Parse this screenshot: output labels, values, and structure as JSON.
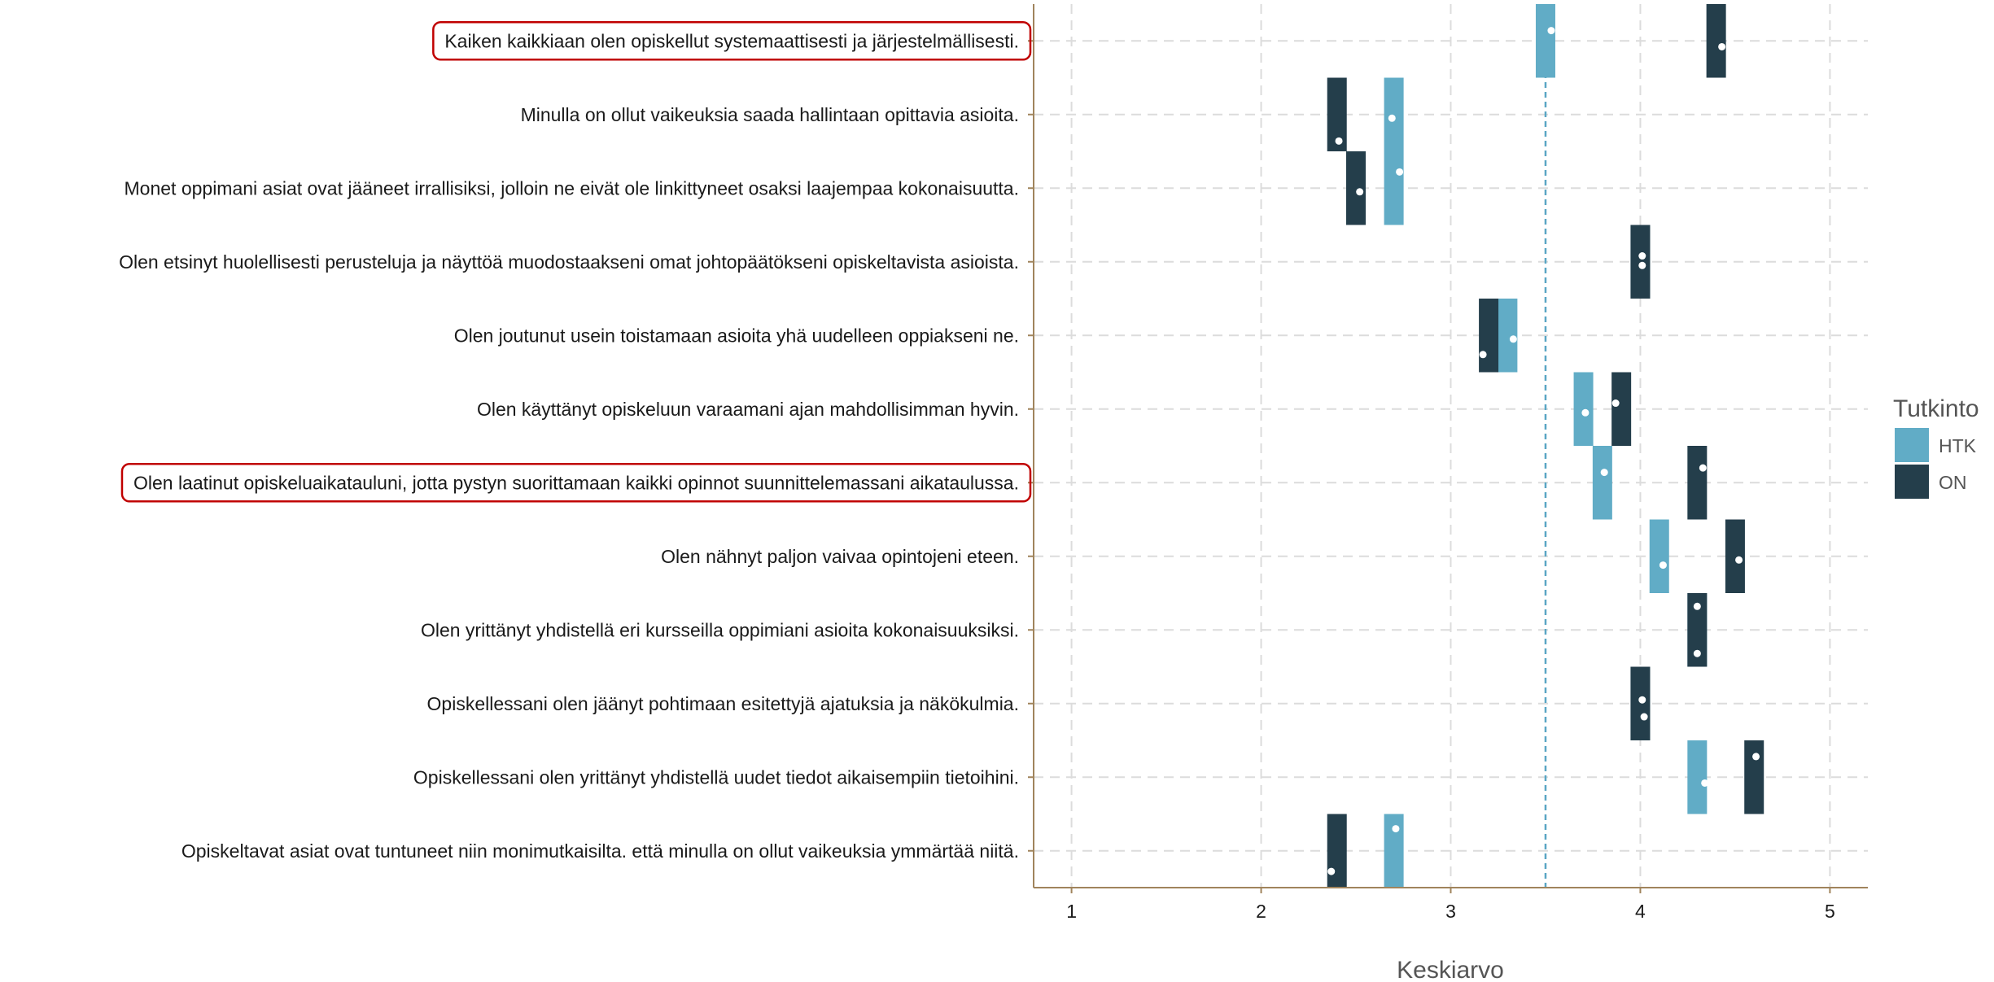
{
  "chart_data": {
    "type": "range-bar",
    "xlabel": "Keskiarvo",
    "xlim": [
      0.8,
      5.2
    ],
    "xticks": [
      1,
      2,
      3,
      4,
      5
    ],
    "reference_line": {
      "x": 3.5,
      "style": "dashed",
      "color": "#5aa6c4"
    },
    "grid": true,
    "legend": {
      "title": "Tutkinto",
      "position": "right",
      "entries": [
        {
          "name": "HTK",
          "color": "#61acc6"
        },
        {
          "name": "ON",
          "color": "#243e4b"
        }
      ]
    },
    "highlighted_categories": [
      0,
      6
    ],
    "highlight_color": "#c00000",
    "categories": [
      "Kaiken kaikkiaan olen opiskellut systemaattisesti ja järjestelmällisesti.",
      "Minulla on ollut vaikeuksia saada hallintaan opittavia asioita.",
      "Monet oppimani asiat ovat jääneet irrallisiksi, jolloin ne eivät ole linkittyneet osaksi laajempaa kokonaisuutta.",
      "Olen etsinyt huolellisesti perusteluja ja näyttöä muodostaakseni omat johtopäätökseni opiskeltavista asioista.",
      "Olen joutunut usein toistamaan asioita yhä uudelleen oppiakseni ne.",
      "Olen käyttänyt opiskeluun varaamani ajan mahdollisimman hyvin.",
      "Olen laatinut opiskeluaikatauluni, jotta pystyn suorittamaan kaikki opinnot suunnittelemassani aikataulussa.",
      "Olen nähnyt paljon vaivaa opintojeni eteen.",
      "Olen yrittänyt yhdistellä eri kursseilla oppimiani asioita kokonaisuuksiksi.",
      "Opiskellessani olen jäänyt pohtimaan esitettyjä ajatuksia ja näkökulmia.",
      "Opiskellessani olen yrittänyt yhdistellä uudet tiedot aikaisempiin tietoihini.",
      "Opiskeltavat asiat ovat tuntuneet niin monimutkaisilta. että minulla on ollut vaikeuksia ymmärtää niitä."
    ],
    "series": [
      {
        "name": "HTK",
        "color": "#61acc6",
        "values": [
          3.5,
          2.7,
          2.7,
          4.0,
          3.3,
          3.7,
          3.8,
          4.1,
          4.3,
          4.0,
          4.3,
          2.7
        ],
        "points": [
          [
            3.53,
            0.36
          ],
          [
            2.69,
            0.55
          ],
          [
            2.73,
            0.28
          ],
          [
            4.01,
            0.55
          ],
          [
            3.33,
            0.55
          ],
          [
            3.71,
            0.55
          ],
          [
            3.81,
            0.36
          ],
          [
            4.12,
            0.62
          ],
          [
            4.3,
            0.18
          ],
          [
            4.02,
            0.68
          ],
          [
            4.34,
            0.58
          ],
          [
            2.71,
            0.2
          ]
        ]
      },
      {
        "name": "ON",
        "color": "#243e4b",
        "values": [
          4.4,
          2.4,
          2.5,
          4.0,
          3.2,
          3.9,
          4.3,
          4.5,
          4.3,
          4.0,
          4.6,
          2.4
        ],
        "points": [
          [
            4.43,
            0.58
          ],
          [
            2.41,
            0.86
          ],
          [
            2.52,
            0.55
          ],
          [
            4.01,
            0.42
          ],
          [
            3.17,
            0.76
          ],
          [
            3.87,
            0.42
          ],
          [
            4.33,
            0.3
          ],
          [
            4.52,
            0.55
          ],
          [
            4.3,
            0.82
          ],
          [
            4.01,
            0.45
          ],
          [
            4.61,
            0.22
          ],
          [
            2.37,
            0.78
          ]
        ]
      }
    ]
  }
}
